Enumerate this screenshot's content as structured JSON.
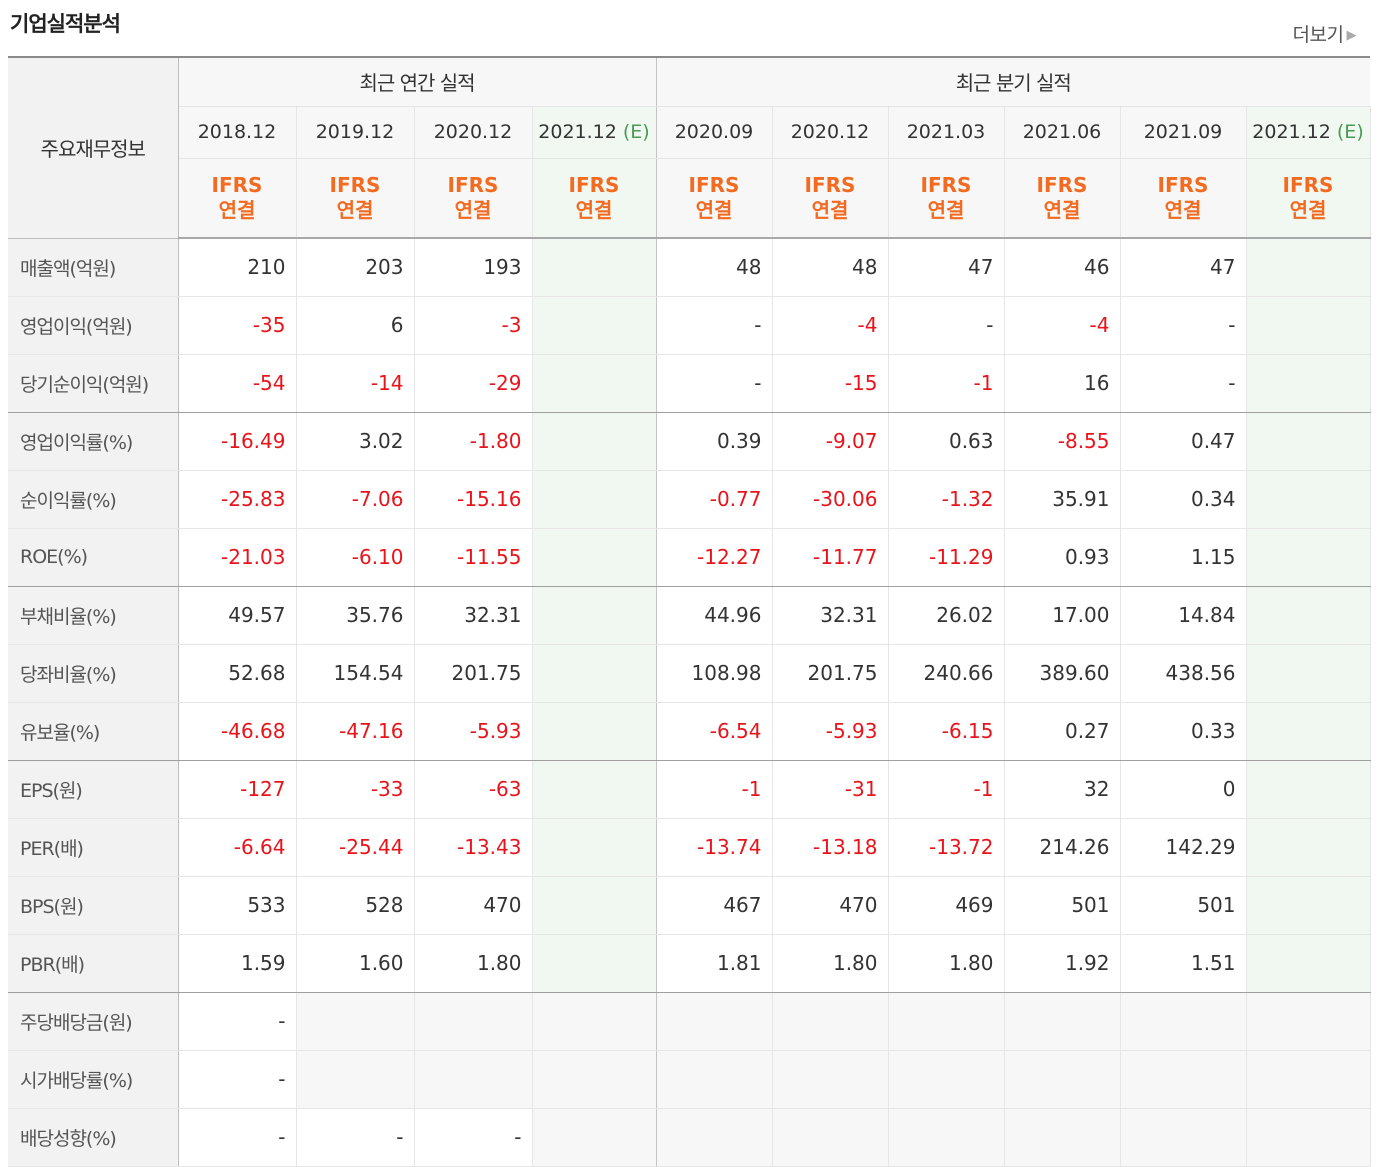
{
  "title": "기업실적분석",
  "more_label": "더보기",
  "header": {
    "main_label": "주요재무정보",
    "annual_label": "최근 연간 실적",
    "quarter_label": "최근 분기 실적",
    "periods": [
      "2018.12",
      "2019.12",
      "2020.12",
      "2021.12",
      "2020.09",
      "2020.12",
      "2021.03",
      "2021.06",
      "2021.09",
      "2021.12"
    ],
    "estimate_mark": "(E)",
    "ifrs_line1": "IFRS",
    "ifrs_line2": "연결"
  },
  "rows": [
    {
      "label": "매출액(억원)",
      "values": [
        "210",
        "203",
        "193",
        "",
        "48",
        "48",
        "47",
        "46",
        "47",
        ""
      ]
    },
    {
      "label": "영업이익(억원)",
      "values": [
        "-35",
        "6",
        "-3",
        "",
        "-",
        "-4",
        "-",
        "-4",
        "-",
        ""
      ]
    },
    {
      "label": "당기순이익(억원)",
      "values": [
        "-54",
        "-14",
        "-29",
        "",
        "-",
        "-15",
        "-1",
        "16",
        "-",
        ""
      ]
    },
    {
      "label": "영업이익률(%)",
      "values": [
        "-16.49",
        "3.02",
        "-1.80",
        "",
        "0.39",
        "-9.07",
        "0.63",
        "-8.55",
        "0.47",
        ""
      ]
    },
    {
      "label": "순이익률(%)",
      "values": [
        "-25.83",
        "-7.06",
        "-15.16",
        "",
        "-0.77",
        "-30.06",
        "-1.32",
        "35.91",
        "0.34",
        ""
      ]
    },
    {
      "label": "ROE(%)",
      "values": [
        "-21.03",
        "-6.10",
        "-11.55",
        "",
        "-12.27",
        "-11.77",
        "-11.29",
        "0.93",
        "1.15",
        ""
      ]
    },
    {
      "label": "부채비율(%)",
      "values": [
        "49.57",
        "35.76",
        "32.31",
        "",
        "44.96",
        "32.31",
        "26.02",
        "17.00",
        "14.84",
        ""
      ]
    },
    {
      "label": "당좌비율(%)",
      "values": [
        "52.68",
        "154.54",
        "201.75",
        "",
        "108.98",
        "201.75",
        "240.66",
        "389.60",
        "438.56",
        ""
      ]
    },
    {
      "label": "유보율(%)",
      "values": [
        "-46.68",
        "-47.16",
        "-5.93",
        "",
        "-6.54",
        "-5.93",
        "-6.15",
        "0.27",
        "0.33",
        ""
      ]
    },
    {
      "label": "EPS(원)",
      "values": [
        "-127",
        "-33",
        "-63",
        "",
        "-1",
        "-31",
        "-1",
        "32",
        "0",
        ""
      ]
    },
    {
      "label": "PER(배)",
      "values": [
        "-6.64",
        "-25.44",
        "-13.43",
        "",
        "-13.74",
        "-13.18",
        "-13.72",
        "214.26",
        "142.29",
        ""
      ]
    },
    {
      "label": "BPS(원)",
      "values": [
        "533",
        "528",
        "470",
        "",
        "467",
        "470",
        "469",
        "501",
        "501",
        ""
      ]
    },
    {
      "label": "PBR(배)",
      "values": [
        "1.59",
        "1.60",
        "1.80",
        "",
        "1.81",
        "1.80",
        "1.80",
        "1.92",
        "1.51",
        ""
      ]
    },
    {
      "label": "주당배당금(원)",
      "values": [
        "-",
        null,
        null,
        null,
        null,
        null,
        null,
        null,
        null,
        null
      ]
    },
    {
      "label": "시가배당률(%)",
      "values": [
        "-",
        null,
        null,
        null,
        null,
        null,
        null,
        null,
        null,
        null
      ]
    },
    {
      "label": "배당성향(%)",
      "values": [
        "-",
        "-",
        "-",
        null,
        null,
        null,
        null,
        null,
        null,
        null
      ]
    }
  ],
  "colors": {
    "negative": "#e8141b",
    "ifrs": "#f26b21",
    "estimate": "#4a9a55",
    "estimate_column_bg": "#f1f7f1"
  }
}
